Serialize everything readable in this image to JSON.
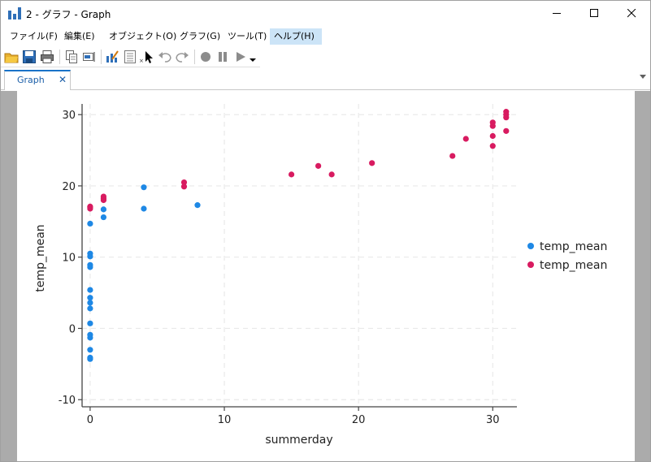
{
  "window": {
    "title": "2 - グラフ - Graph",
    "minimize_label": "—",
    "maximize_label": "□",
    "close_label": "✕"
  },
  "menu": {
    "items": [
      {
        "label": "ファイル(F)"
      },
      {
        "label": "編集(E)"
      },
      {
        "label": "オブジェクト(O)"
      },
      {
        "label": "グラフ(G)"
      },
      {
        "label": "ツール(T)"
      },
      {
        "label": "ヘルプ(H)"
      }
    ]
  },
  "toolbar": {
    "icons": [
      "open-folder-icon",
      "save-icon",
      "print-icon",
      "copy-icon",
      "rename-icon",
      "graph-editor-icon",
      "properties-icon",
      "pointer-icon",
      "undo-icon",
      "redo-icon",
      "record-icon",
      "pause-icon",
      "play-icon",
      "dropdown-icon"
    ]
  },
  "tabs": [
    {
      "label": "Graph",
      "close": "✕"
    }
  ],
  "colors": {
    "series1": "#1e88e5",
    "series2": "#d81b60",
    "menu_active": "#cce4f7",
    "tab_accent": "#1a73c8"
  },
  "chart_data": {
    "type": "scatter",
    "xlabel": "summerday",
    "ylabel": "temp_mean",
    "xlim": [
      -0.6,
      31.8
    ],
    "ylim": [
      -11,
      31.5
    ],
    "xticks": [
      0,
      10,
      20,
      30
    ],
    "yticks": [
      -10,
      0,
      10,
      20,
      30
    ],
    "grid": true,
    "legend_position": "right",
    "series": [
      {
        "name": "temp_mean",
        "color": "#1e88e5",
        "points": [
          [
            0,
            14.7
          ],
          [
            0,
            10.5
          ],
          [
            0,
            10.1
          ],
          [
            0,
            8.9
          ],
          [
            0,
            8.6
          ],
          [
            0,
            5.4
          ],
          [
            0,
            4.3
          ],
          [
            0,
            3.6
          ],
          [
            0,
            2.8
          ],
          [
            0,
            0.7
          ],
          [
            0,
            -0.9
          ],
          [
            0,
            -1.3
          ],
          [
            0,
            -3.0
          ],
          [
            0,
            -4.1
          ],
          [
            0,
            -4.3
          ],
          [
            1,
            16.7
          ],
          [
            1,
            15.6
          ],
          [
            4,
            19.8
          ],
          [
            4,
            16.8
          ],
          [
            8,
            17.3
          ]
        ]
      },
      {
        "name": "temp_mean",
        "color": "#d81b60",
        "points": [
          [
            0,
            17.1
          ],
          [
            0,
            17.0
          ],
          [
            0,
            16.8
          ],
          [
            1,
            18.5
          ],
          [
            1,
            18.2
          ],
          [
            1,
            18.0
          ],
          [
            7,
            20.5
          ],
          [
            7,
            19.9
          ],
          [
            15,
            21.6
          ],
          [
            17,
            22.8
          ],
          [
            18,
            21.6
          ],
          [
            21,
            23.2
          ],
          [
            27,
            24.2
          ],
          [
            28,
            26.6
          ],
          [
            30,
            28.9
          ],
          [
            30,
            28.4
          ],
          [
            30,
            27.0
          ],
          [
            30,
            25.6
          ],
          [
            31,
            30.4
          ],
          [
            31,
            30.0
          ],
          [
            31,
            29.6
          ],
          [
            31,
            27.7
          ]
        ]
      }
    ]
  }
}
